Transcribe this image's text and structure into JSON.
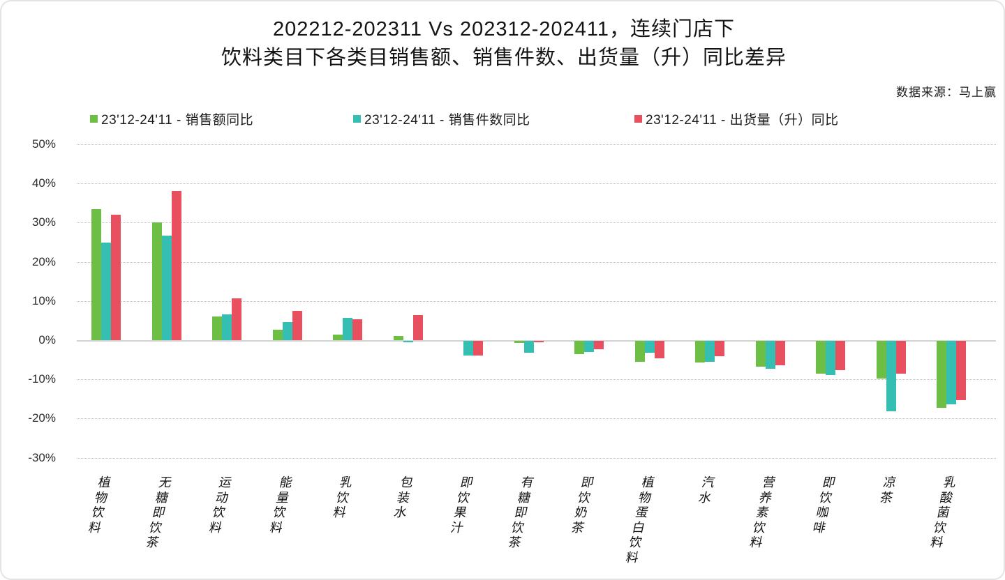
{
  "page": {
    "background": "#ffffff",
    "card_border_color": "#e4e4e4"
  },
  "chart_data": {
    "type": "bar",
    "title_line1": "202212-202311 Vs 202312-202411，连续门店下",
    "title_line2": "饮料类目下各类目销售额、销售件数、出货量（升）同比差异",
    "source": "数据来源：马上赢",
    "legend_position": "top",
    "grid": "dotted horizontal",
    "categories": [
      "植物饮料",
      "无糖即饮茶",
      "运动饮料",
      "能量饮料",
      "乳饮料",
      "包装水",
      "即饮果汁",
      "有糖即饮茶",
      "即饮奶茶",
      "植物蛋白饮料",
      "汽水",
      "营养素饮料",
      "即饮咖啡",
      "凉茶",
      "乳酸菌饮料"
    ],
    "series": [
      {
        "name": "23'12-24'11 - 销售额同比",
        "color": "#6DBE44",
        "values": [
          33.5,
          30.0,
          6.0,
          2.7,
          1.4,
          1.1,
          0.0,
          -0.6,
          -3.4,
          -5.3,
          -5.6,
          -6.5,
          -8.3,
          -9.6,
          -17.1
        ]
      },
      {
        "name": "23'12-24'11 - 销售件数同比",
        "color": "#35BFB2",
        "values": [
          25.0,
          26.7,
          6.5,
          4.7,
          5.7,
          -0.4,
          -3.7,
          -3.1,
          -2.9,
          -3.0,
          -5.4,
          -7.1,
          -8.7,
          -18.0,
          -16.2
        ]
      },
      {
        "name": "23'12-24'11 - 出货量（升）同比",
        "color": "#E8505F",
        "values": [
          32.0,
          38.0,
          10.7,
          7.4,
          5.4,
          6.4,
          -3.7,
          -0.4,
          -2.1,
          -4.4,
          -3.9,
          -6.3,
          -7.4,
          -8.3,
          -15.2
        ]
      }
    ],
    "y_axis": {
      "min": -30,
      "max": 50,
      "step": 10,
      "unit": "%",
      "labels": [
        "50%",
        "40%",
        "30%",
        "20%",
        "10%",
        "0%",
        "-10%",
        "-20%",
        "-30%"
      ]
    }
  }
}
